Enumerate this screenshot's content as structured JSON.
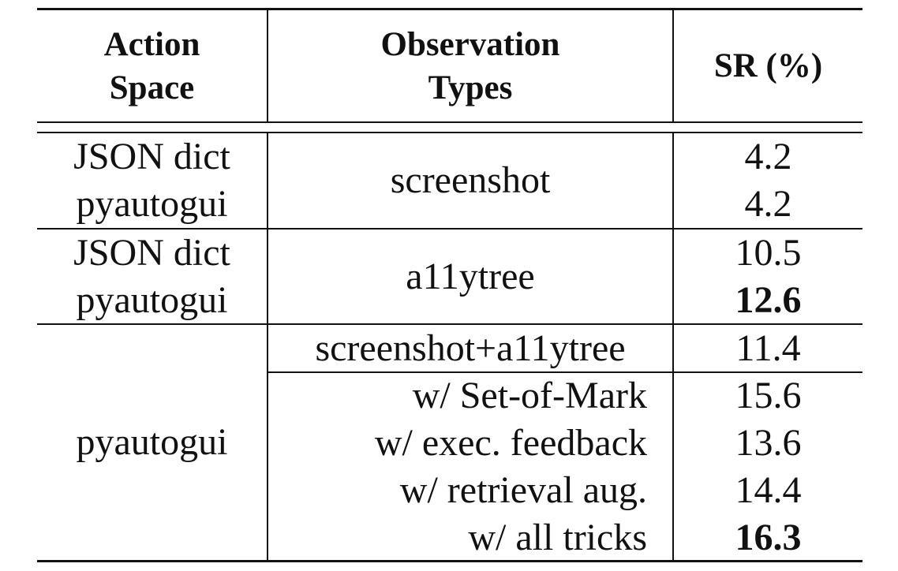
{
  "table": {
    "headers": {
      "action_space": [
        "Action",
        "Space"
      ],
      "observation_types": [
        "Observation",
        "Types"
      ],
      "sr": "SR (%)"
    },
    "groups": [
      {
        "action_spaces": [
          "JSON dict",
          "pyautogui"
        ],
        "observation": "screenshot",
        "sr": [
          {
            "value": "4.2",
            "bold": false
          },
          {
            "value": "4.2",
            "bold": false
          }
        ]
      },
      {
        "action_spaces": [
          "JSON dict",
          "pyautogui"
        ],
        "observation": "a11ytree",
        "sr": [
          {
            "value": "10.5",
            "bold": false
          },
          {
            "value": "12.6",
            "bold": true
          }
        ]
      },
      {
        "action_space": "pyautogui",
        "subrows": [
          {
            "observations": [
              "screenshot+a11ytree"
            ],
            "sr": [
              {
                "value": "11.4",
                "bold": false
              }
            ]
          },
          {
            "observations": [
              "w/ Set-of-Mark",
              "w/ exec. feedback",
              "w/ retrieval aug.",
              "w/ all tricks"
            ],
            "sr": [
              {
                "value": "15.6",
                "bold": false
              },
              {
                "value": "13.6",
                "bold": false
              },
              {
                "value": "14.4",
                "bold": false
              },
              {
                "value": "16.3",
                "bold": true
              }
            ]
          }
        ]
      }
    ]
  }
}
